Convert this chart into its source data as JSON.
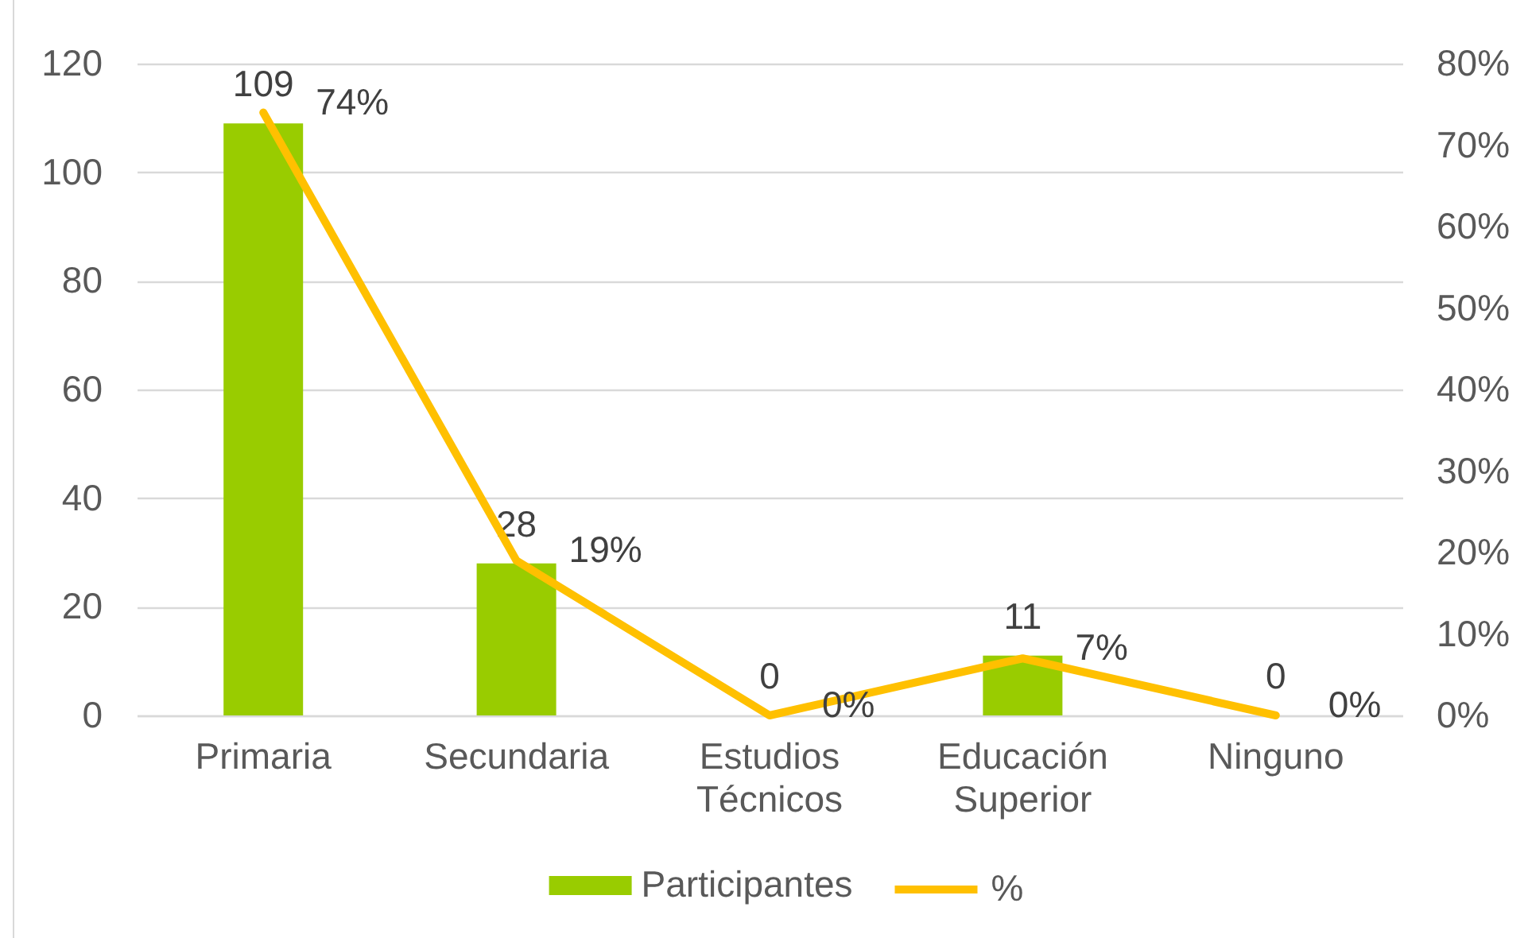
{
  "chart_data": {
    "type": "bar",
    "categories": [
      "Primaria",
      "Secundaria",
      "Estudios Técnicos",
      "Educación Superior",
      "Ninguno"
    ],
    "series": [
      {
        "name": "Participantes",
        "color": "#99cc00",
        "values": [
          109,
          28,
          0,
          11,
          0
        ],
        "value_labels": [
          "109",
          "28",
          "0",
          "11",
          "0"
        ]
      },
      {
        "name": "%",
        "type": "line",
        "axis": "y2",
        "color": "#ffc000",
        "line_style": "solid",
        "values": [
          74,
          19,
          0,
          7,
          0
        ],
        "value_labels": [
          "74%",
          "19%",
          "0%",
          "7%",
          "0%"
        ]
      }
    ],
    "ylim": [
      0,
      120
    ],
    "yticks": [
      0,
      20,
      40,
      60,
      80,
      100,
      120
    ],
    "y2lim": [
      0,
      80
    ],
    "y2ticks": [
      {
        "value": 0,
        "label": "0%"
      },
      {
        "value": 10,
        "label": "10%"
      },
      {
        "value": 20,
        "label": "20%"
      },
      {
        "value": 30,
        "label": "30%"
      },
      {
        "value": 40,
        "label": "40%"
      },
      {
        "value": 50,
        "label": "50%"
      },
      {
        "value": 60,
        "label": "60%"
      },
      {
        "value": 70,
        "label": "70%"
      },
      {
        "value": 80,
        "label": "80%"
      }
    ],
    "grid": "y",
    "legend": "bottom"
  }
}
